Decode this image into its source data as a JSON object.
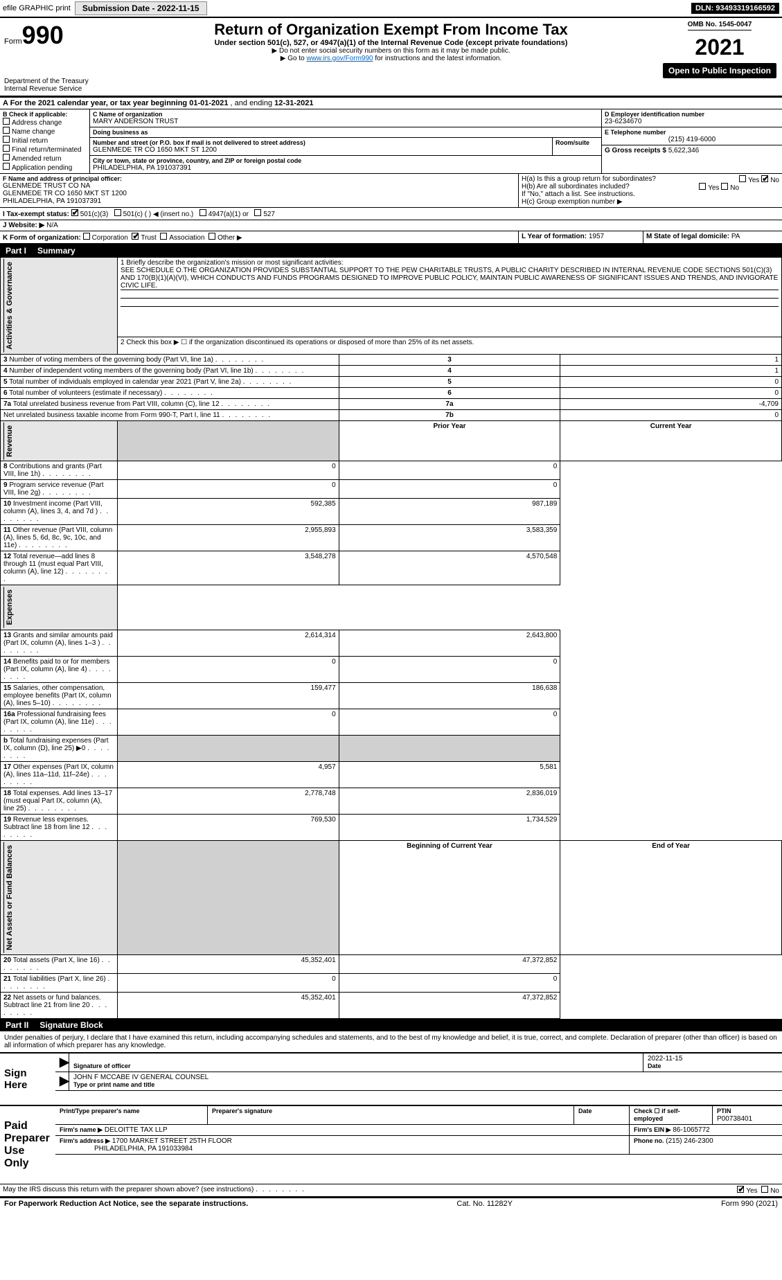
{
  "top": {
    "efile": "efile GRAPHIC print",
    "sub_btn": "Submission Date - 2022-11-15",
    "dln": "DLN: 93493319166592"
  },
  "header": {
    "form_label": "Form",
    "form_num": "990",
    "dept": "Department of the Treasury\nInternal Revenue Service",
    "title": "Return of Organization Exempt From Income Tax",
    "sub": "Under section 501(c), 527, or 4947(a)(1) of the Internal Revenue Code (except private foundations)",
    "note1": "▶ Do not enter social security numbers on this form as it may be made public.",
    "note2_pre": "▶ Go to ",
    "note2_link": "www.irs.gov/Form990",
    "note2_post": " for instructions and the latest information.",
    "omb": "OMB No. 1545-0047",
    "year": "2021",
    "open": "Open to Public Inspection"
  },
  "A": {
    "text_pre": "A For the 2021 calendar year, or tax year beginning ",
    "begin": "01-01-2021",
    "mid": "   , and ending ",
    "end": "12-31-2021"
  },
  "B": {
    "label": "B Check if applicable:",
    "opts": [
      "Address change",
      "Name change",
      "Initial return",
      "Final return/terminated",
      "Amended return",
      "Application pending"
    ]
  },
  "C": {
    "name_label": "C Name of organization",
    "name": "MARY ANDERSON TRUST",
    "dba_label": "Doing business as",
    "dba": "",
    "street_label": "Number and street (or P.O. box if mail is not delivered to street address)",
    "room_label": "Room/suite",
    "street": "GLENMEDE TR CO 1650 MKT ST 1200",
    "city_label": "City or town, state or province, country, and ZIP or foreign postal code",
    "city": "PHILADELPHIA, PA  191037391"
  },
  "D": {
    "label": "D Employer identification number",
    "val": "23-6234670"
  },
  "E": {
    "label": "E Telephone number",
    "val": "(215) 419-6000"
  },
  "G": {
    "label": "G Gross receipts $",
    "val": "5,622,346"
  },
  "F": {
    "label": "F Name and address of principal officer:",
    "name": "GLENMEDE TRUST CO NA",
    "addr1": "GLENMEDE TR CO 1650 MKT ST 1200",
    "addr2": "PHILADELPHIA, PA  191037391"
  },
  "H": {
    "a": "H(a)  Is this a group return for subordinates?",
    "b": "H(b)  Are all subordinates included?",
    "b_note": "If \"No,\" attach a list. See instructions.",
    "c": "H(c)  Group exemption number ▶",
    "yes": "Yes",
    "no": "No"
  },
  "I": {
    "label": "I  Tax-exempt status:",
    "o1": "501(c)(3)",
    "o2": "501(c) (   ) ◀ (insert no.)",
    "o3": "4947(a)(1) or",
    "o4": "527"
  },
  "J": {
    "label": "J  Website: ▶",
    "val": "N/A"
  },
  "K": {
    "label": "K Form of organization:",
    "o1": "Corporation",
    "o2": "Trust",
    "o3": "Association",
    "o4": "Other ▶"
  },
  "L": {
    "label": "L Year of formation:",
    "val": "1957"
  },
  "M": {
    "label": "M State of legal domicile:",
    "val": "PA"
  },
  "parts": {
    "p1": "Part I",
    "p1t": "Summary",
    "p2": "Part II",
    "p2t": "Signature Block"
  },
  "side": {
    "s1": "Activities & Governance",
    "s2": "Revenue",
    "s3": "Expenses",
    "s4": "Net Assets or Fund Balances"
  },
  "p1": {
    "l1": "1  Briefly describe the organization's mission or most significant activities:",
    "l1_text": "SEE SCHEDULE O.THE ORGANIZATION PROVIDES SUBSTANTIAL SUPPORT TO THE PEW CHARITABLE TRUSTS, A PUBLIC CHARITY DESCRIBED IN INTERNAL REVENUE CODE SECTIONS 501(C)(3) AND 170(B)(1)(A)(VI), WHICH CONDUCTS AND FUNDS PROGRAMS DESIGNED TO IMPROVE PUBLIC POLICY, MAINTAIN PUBLIC AWARENESS OF SIGNIFICANT ISSUES AND TRENDS, AND INVIGORATE CIVIC LIFE.",
    "l2": "2  Check this box ▶ ☐ if the organization discontinued its operations or disposed of more than 25% of its net assets.",
    "rows_gov": [
      {
        "n": "3",
        "t": "Number of voting members of the governing body (Part VI, line 1a)",
        "rn": "3",
        "v": "1"
      },
      {
        "n": "4",
        "t": "Number of independent voting members of the governing body (Part VI, line 1b)",
        "rn": "4",
        "v": "1"
      },
      {
        "n": "5",
        "t": "Total number of individuals employed in calendar year 2021 (Part V, line 2a)",
        "rn": "5",
        "v": "0"
      },
      {
        "n": "6",
        "t": "Total number of volunteers (estimate if necessary)",
        "rn": "6",
        "v": "0"
      },
      {
        "n": "7a",
        "t": "Total unrelated business revenue from Part VIII, column (C), line 12",
        "rn": "7a",
        "v": "-4,709"
      },
      {
        "n": "",
        "t": "Net unrelated business taxable income from Form 990-T, Part I, line 11",
        "rn": "7b",
        "v": "0"
      }
    ],
    "hdr_prior": "Prior Year",
    "hdr_curr": "Current Year",
    "rows_rev": [
      {
        "n": "8",
        "t": "Contributions and grants (Part VIII, line 1h)",
        "p": "0",
        "c": "0"
      },
      {
        "n": "9",
        "t": "Program service revenue (Part VIII, line 2g)",
        "p": "0",
        "c": "0"
      },
      {
        "n": "10",
        "t": "Investment income (Part VIII, column (A), lines 3, 4, and 7d )",
        "p": "592,385",
        "c": "987,189"
      },
      {
        "n": "11",
        "t": "Other revenue (Part VIII, column (A), lines 5, 6d, 8c, 9c, 10c, and 11e)",
        "p": "2,955,893",
        "c": "3,583,359"
      },
      {
        "n": "12",
        "t": "Total revenue—add lines 8 through 11 (must equal Part VIII, column (A), line 12)",
        "p": "3,548,278",
        "c": "4,570,548"
      }
    ],
    "rows_exp": [
      {
        "n": "13",
        "t": "Grants and similar amounts paid (Part IX, column (A), lines 1–3 )",
        "p": "2,614,314",
        "c": "2,643,800"
      },
      {
        "n": "14",
        "t": "Benefits paid to or for members (Part IX, column (A), line 4)",
        "p": "0",
        "c": "0"
      },
      {
        "n": "15",
        "t": "Salaries, other compensation, employee benefits (Part IX, column (A), lines 5–10)",
        "p": "159,477",
        "c": "186,638"
      },
      {
        "n": "16a",
        "t": "Professional fundraising fees (Part IX, column (A), line 11e)",
        "p": "0",
        "c": "0"
      },
      {
        "n": "b",
        "t": "Total fundraising expenses (Part IX, column (D), line 25) ▶0",
        "p": "",
        "c": "",
        "shade": true
      },
      {
        "n": "17",
        "t": "Other expenses (Part IX, column (A), lines 11a–11d, 11f–24e)",
        "p": "4,957",
        "c": "5,581"
      },
      {
        "n": "18",
        "t": "Total expenses. Add lines 13–17 (must equal Part IX, column (A), line 25)",
        "p": "2,778,748",
        "c": "2,836,019"
      },
      {
        "n": "19",
        "t": "Revenue less expenses. Subtract line 18 from line 12",
        "p": "769,530",
        "c": "1,734,529"
      }
    ],
    "hdr_beg": "Beginning of Current Year",
    "hdr_end": "End of Year",
    "rows_net": [
      {
        "n": "20",
        "t": "Total assets (Part X, line 16)",
        "p": "45,352,401",
        "c": "47,372,852"
      },
      {
        "n": "21",
        "t": "Total liabilities (Part X, line 26)",
        "p": "0",
        "c": "0"
      },
      {
        "n": "22",
        "t": "Net assets or fund balances. Subtract line 21 from line 20",
        "p": "45,352,401",
        "c": "47,372,852"
      }
    ]
  },
  "sig": {
    "decl": "Under penalties of perjury, I declare that I have examined this return, including accompanying schedules and statements, and to the best of my knowledge and belief, it is true, correct, and complete. Declaration of preparer (other than officer) is based on all information of which preparer has any knowledge.",
    "sign_here": "Sign Here",
    "sig_officer": "Signature of officer",
    "date": "Date",
    "date_val": "2022-11-15",
    "name_title": "JOHN F MCCABE IV  GENERAL COUNSEL",
    "name_title_label": "Type or print name and title",
    "paid": "Paid Preparer Use Only",
    "prep_name_label": "Print/Type preparer's name",
    "prep_sig_label": "Preparer's signature",
    "check_self": "Check ☐ if self-employed",
    "ptin_label": "PTIN",
    "ptin": "P00738401",
    "firm_name_label": "Firm's name    ▶",
    "firm_name": "DELOITTE TAX LLP",
    "firm_ein_label": "Firm's EIN ▶",
    "firm_ein": "86-1065772",
    "firm_addr_label": "Firm's address ▶",
    "firm_addr1": "1700 MARKET STREET 25TH FLOOR",
    "firm_addr2": "PHILADELPHIA, PA  191033984",
    "phone_label": "Phone no.",
    "phone": "(215) 246-2300",
    "discuss": "May the IRS discuss this return with the preparer shown above? (see instructions)",
    "yes": "Yes",
    "no": "No"
  },
  "footer": {
    "left": "For Paperwork Reduction Act Notice, see the separate instructions.",
    "mid": "Cat. No. 11282Y",
    "right": "Form 990 (2021)"
  }
}
